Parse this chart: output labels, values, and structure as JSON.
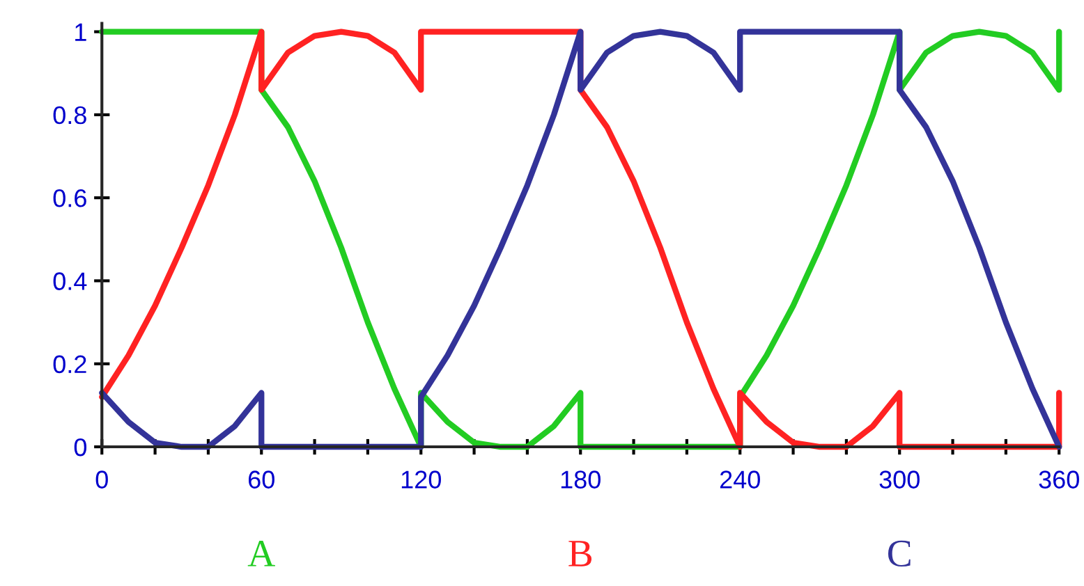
{
  "chart_data": {
    "type": "line",
    "xlim": [
      0,
      360
    ],
    "ylim": [
      0,
      1.02
    ],
    "xticks": [
      0,
      {
        "value": 20,
        "label": null
      },
      {
        "value": 40,
        "label": null
      },
      60,
      {
        "value": 80,
        "label": null
      },
      {
        "value": 100,
        "label": null
      },
      120,
      {
        "value": 140,
        "label": null
      },
      {
        "value": 160,
        "label": null
      },
      180,
      {
        "value": 200,
        "label": null
      },
      {
        "value": 220,
        "label": null
      },
      240,
      {
        "value": 260,
        "label": null
      },
      {
        "value": 280,
        "label": null
      },
      300,
      {
        "value": 320,
        "label": null
      },
      {
        "value": 340,
        "label": null
      },
      360
    ],
    "yticks": [
      0,
      0.2,
      0.4,
      0.6,
      0.8,
      1
    ],
    "grid": false,
    "legend": false,
    "marker": "none",
    "line_style": "solid",
    "series": [
      {
        "name": "A",
        "color": "#22cc22",
        "x": [
          0,
          60,
          60,
          70,
          80,
          90,
          100,
          110,
          120,
          120,
          130,
          140,
          150,
          160,
          170,
          180,
          180,
          240,
          240,
          250,
          260,
          270,
          280,
          290,
          300,
          300,
          310,
          320,
          330,
          340,
          350,
          360,
          360
        ],
        "values": [
          1,
          1,
          0.86,
          0.77,
          0.64,
          0.48,
          0.3,
          0.14,
          0,
          0.13,
          0.06,
          0.01,
          0,
          0,
          0.05,
          0.13,
          0,
          0,
          0.12,
          0.22,
          0.34,
          0.48,
          0.63,
          0.8,
          1,
          0.86,
          0.95,
          0.99,
          1,
          0.99,
          0.95,
          0.86,
          1
        ]
      },
      {
        "name": "B",
        "color": "#ff2222",
        "x": [
          0,
          10,
          20,
          30,
          40,
          50,
          60,
          60,
          70,
          80,
          90,
          100,
          110,
          120,
          120,
          180,
          180,
          190,
          200,
          210,
          220,
          230,
          240,
          240,
          250,
          260,
          270,
          280,
          290,
          300,
          300,
          360,
          360
        ],
        "values": [
          0.12,
          0.22,
          0.34,
          0.48,
          0.63,
          0.8,
          1,
          0.86,
          0.95,
          0.99,
          1,
          0.99,
          0.95,
          0.86,
          1,
          1,
          0.86,
          0.77,
          0.64,
          0.48,
          0.3,
          0.14,
          0,
          0.13,
          0.06,
          0.01,
          0,
          0,
          0.05,
          0.13,
          0,
          0,
          0.13
        ]
      },
      {
        "name": "C",
        "color": "#333399",
        "x": [
          0,
          10,
          20,
          30,
          40,
          50,
          60,
          60,
          120,
          120,
          130,
          140,
          150,
          160,
          170,
          180,
          180,
          190,
          200,
          210,
          220,
          230,
          240,
          240,
          300,
          300,
          310,
          320,
          330,
          340,
          350,
          360
        ],
        "values": [
          0.13,
          0.06,
          0.01,
          0,
          0,
          0.05,
          0.13,
          0,
          0,
          0.12,
          0.22,
          0.34,
          0.48,
          0.63,
          0.8,
          1,
          0.86,
          0.95,
          0.99,
          1,
          0.99,
          0.95,
          0.86,
          1,
          1,
          0.86,
          0.77,
          0.64,
          0.48,
          0.3,
          0.14,
          0
        ]
      }
    ]
  }
}
